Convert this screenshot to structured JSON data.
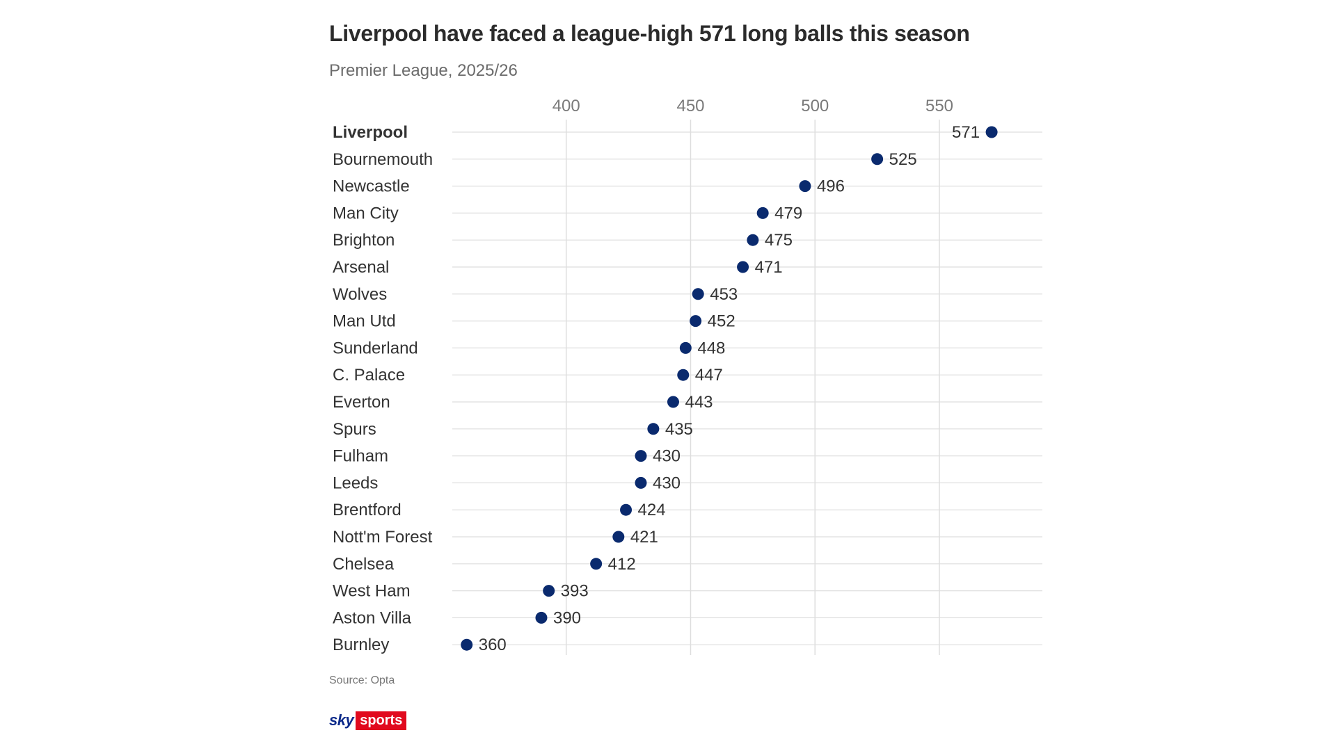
{
  "chart_data": {
    "type": "dot",
    "title": "Liverpool have faced a league-high 571 long balls this season",
    "subtitle": "Premier League, 2025/26",
    "xlabel": "",
    "ylabel": "",
    "xlim": [
      357,
      583
    ],
    "xticks": [
      400,
      450,
      500,
      550
    ],
    "grid": true,
    "highlight": "Liverpool",
    "categories": [
      "Liverpool",
      "Bournemouth",
      "Newcastle",
      "Man City",
      "Brighton",
      "Arsenal",
      "Wolves",
      "Man Utd",
      "Sunderland",
      "C. Palace",
      "Everton",
      "Spurs",
      "Fulham",
      "Leeds",
      "Brentford",
      "Nott'm Forest",
      "Chelsea",
      "West Ham",
      "Aston Villa",
      "Burnley"
    ],
    "values": [
      571,
      525,
      496,
      479,
      475,
      471,
      453,
      452,
      448,
      447,
      443,
      435,
      430,
      430,
      424,
      421,
      412,
      393,
      390,
      360
    ],
    "dot_color": "#0a2a6e",
    "grid_color": "#dedede"
  },
  "footer": {
    "source": "Source: Opta"
  },
  "logo": {
    "sky": "sky",
    "sports": "sports",
    "colors": {
      "sky": "#0c2a8a",
      "sports_bg": "#e10a1e"
    }
  }
}
